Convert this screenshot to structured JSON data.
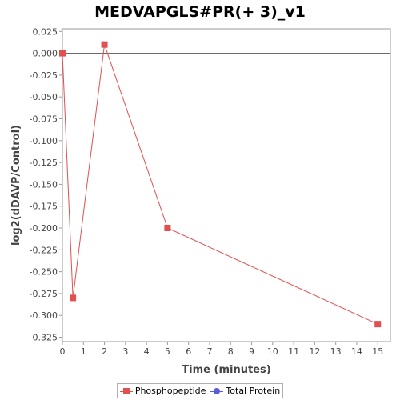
{
  "chart_data": {
    "type": "line",
    "title": "MEDVAPGLS#PR(+ 3)_v1",
    "xlabel": "Time (minutes)",
    "ylabel": "log2(dDAVP/Control)",
    "xlim": [
      0,
      15.6
    ],
    "ylim": [
      -0.33,
      0.028
    ],
    "xticks": [
      0,
      1,
      2,
      3,
      4,
      5,
      6,
      7,
      8,
      9,
      10,
      11,
      12,
      13,
      14,
      15
    ],
    "xtick_labels": [
      "0",
      "1",
      "2",
      "3",
      "4",
      "5",
      "6",
      "7",
      "8",
      "9",
      "10",
      "11",
      "12",
      "13",
      "14",
      "15"
    ],
    "yticks": [
      0.025,
      0.0,
      -0.025,
      -0.05,
      -0.075,
      -0.1,
      -0.125,
      -0.15,
      -0.175,
      -0.2,
      -0.225,
      -0.25,
      -0.275,
      -0.3,
      -0.325
    ],
    "ytick_labels": [
      "0.025",
      "0.000",
      "-0.025",
      "-0.050",
      "-0.075",
      "-0.100",
      "-0.125",
      "-0.150",
      "-0.175",
      "-0.200",
      "-0.225",
      "-0.250",
      "-0.275",
      "-0.300",
      "-0.325"
    ],
    "grid": false,
    "zero_line": true,
    "legend_position": "bottom",
    "series": [
      {
        "name": "Phosphopeptide",
        "color": "#e05050",
        "marker": "square",
        "x": [
          0,
          0.5,
          2,
          5,
          15
        ],
        "y": [
          0.0,
          -0.28,
          0.01,
          -0.2,
          -0.31
        ]
      },
      {
        "name": "Total Protein",
        "color": "#5a5ae0",
        "marker": "circle",
        "x": [],
        "y": []
      }
    ]
  }
}
